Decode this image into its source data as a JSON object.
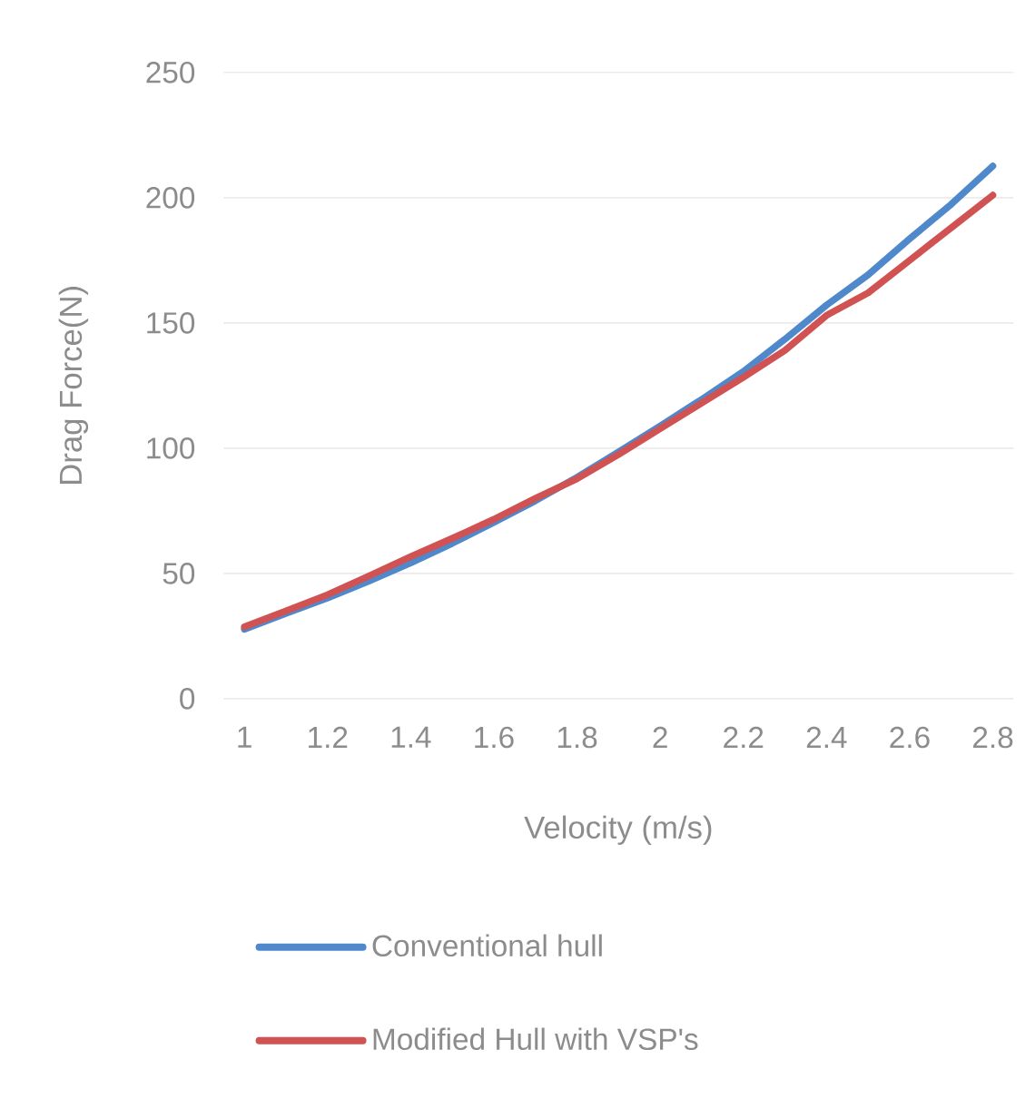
{
  "chart_data": {
    "type": "line",
    "xlabel": "Velocity (m/s)",
    "ylabel": "Drag Force(N)",
    "x": [
      1,
      1.1,
      1.2,
      1.3,
      1.4,
      1.5,
      1.6,
      1.7,
      1.8,
      1.9,
      2,
      2.1,
      2.2,
      2.3,
      2.4,
      2.5,
      2.6,
      2.7,
      2.8
    ],
    "series": [
      {
        "name": "Conventional hull",
        "color": "#5089cb",
        "values": [
          27.7,
          34,
          40.2,
          47,
          54.2,
          62,
          70.4,
          79,
          88.4,
          98.5,
          108.9,
          119.5,
          130.6,
          143.5,
          157.1,
          169.2,
          183.6,
          197.4,
          212.6
        ]
      },
      {
        "name": "Modified Hull with VSP's",
        "color": "#d05252",
        "values": [
          28.7,
          35,
          41.5,
          49,
          56.7,
          64,
          71.6,
          80,
          87.8,
          97.5,
          107.8,
          118,
          128.3,
          139,
          153,
          162,
          175,
          188,
          201
        ]
      }
    ],
    "xlim": [
      0.95,
      2.85
    ],
    "xticks": [
      1,
      1.2,
      1.4,
      1.6,
      1.8,
      2,
      2.2,
      2.4,
      2.6,
      2.8
    ],
    "ylim": [
      0,
      250
    ],
    "yticks": [
      0,
      50,
      100,
      150,
      200,
      250
    ],
    "grid": "y",
    "legend": "bottom",
    "marker": "none",
    "line_style": "solid"
  }
}
